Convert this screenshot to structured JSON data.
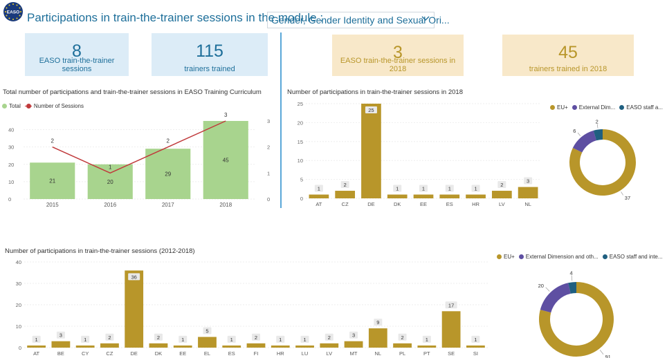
{
  "logo": {
    "text": "EASO"
  },
  "header": {
    "title": "Participations in train-the-trainer sessions in the module :",
    "dropdown_value": "Gender, Gender Identity and Sexual Ori..."
  },
  "kpis": {
    "sessions": {
      "value": "8",
      "label": "EASO train-the-trainer sessions"
    },
    "trained": {
      "value": "115",
      "label": "trainers trained"
    },
    "sessions_2018": {
      "value": "3",
      "label": "EASO train-the-trainer sessions in 2018"
    },
    "trained_2018": {
      "value": "45",
      "label": "trainers trained in 2018"
    }
  },
  "colors": {
    "accent": "#1e6f9a",
    "gold": "#b8962a",
    "green": "#a8d48e",
    "red": "#c0393b",
    "purple": "#5e4fa2",
    "teal": "#1f5f80"
  },
  "chart_data": [
    {
      "id": "combo",
      "type": "bar",
      "title": "Total number of participations and train-the-trainer sessions in EASO Training Curriculum",
      "legend": [
        "Total",
        "Number of Sessions"
      ],
      "categories": [
        "2015",
        "2016",
        "2017",
        "2018"
      ],
      "series": [
        {
          "name": "Total",
          "type": "bar",
          "values": [
            21,
            20,
            29,
            45
          ]
        },
        {
          "name": "Number of Sessions",
          "type": "line",
          "values": [
            2,
            1,
            2,
            3
          ]
        }
      ],
      "ylim": [
        0,
        45
      ],
      "y_ticks": [
        "0",
        "10",
        "20",
        "30",
        "40"
      ],
      "y2lim": [
        0,
        3
      ],
      "y2_ticks": [
        "0",
        "1",
        "2",
        "3"
      ]
    },
    {
      "id": "bar2018",
      "type": "bar",
      "title": "Number of participations in train-the-trainer sessions in 2018",
      "categories": [
        "AT",
        "CZ",
        "DE",
        "DK",
        "EE",
        "ES",
        "HR",
        "LV",
        "NL"
      ],
      "values": [
        1,
        2,
        25,
        1,
        1,
        1,
        1,
        2,
        3
      ],
      "ylim": [
        0,
        25
      ],
      "y_ticks": [
        "0",
        "5",
        "10",
        "15",
        "20",
        "25"
      ]
    },
    {
      "id": "donut2018",
      "type": "pie",
      "legend": [
        "EU+",
        "External Dim...",
        "EASO staff a..."
      ],
      "slices": [
        {
          "name": "EU+",
          "value": 37
        },
        {
          "name": "External Dim...",
          "value": 6
        },
        {
          "name": "EASO staff a...",
          "value": 2
        }
      ]
    },
    {
      "id": "barAll",
      "type": "bar",
      "title": "Number of participations in train-the-trainer sessions (2012-2018)",
      "categories": [
        "AT",
        "BE",
        "CY",
        "CZ",
        "DE",
        "DK",
        "EE",
        "EL",
        "ES",
        "FI",
        "HR",
        "LU",
        "LV",
        "MT",
        "NL",
        "PL",
        "PT",
        "SE",
        "SI"
      ],
      "values": [
        1,
        3,
        1,
        2,
        36,
        2,
        1,
        5,
        1,
        2,
        1,
        1,
        2,
        3,
        9,
        2,
        1,
        17,
        1
      ],
      "ylim": [
        0,
        40
      ],
      "y_ticks": [
        "0",
        "10",
        "20",
        "30",
        "40"
      ]
    },
    {
      "id": "donutAll",
      "type": "pie",
      "legend": [
        "EU+",
        "External Dimension and oth...",
        "EASO staff and inte..."
      ],
      "slices": [
        {
          "name": "EU+",
          "value": 91
        },
        {
          "name": "External Dimension and oth...",
          "value": 20
        },
        {
          "name": "EASO staff and inte...",
          "value": 4
        }
      ]
    }
  ]
}
